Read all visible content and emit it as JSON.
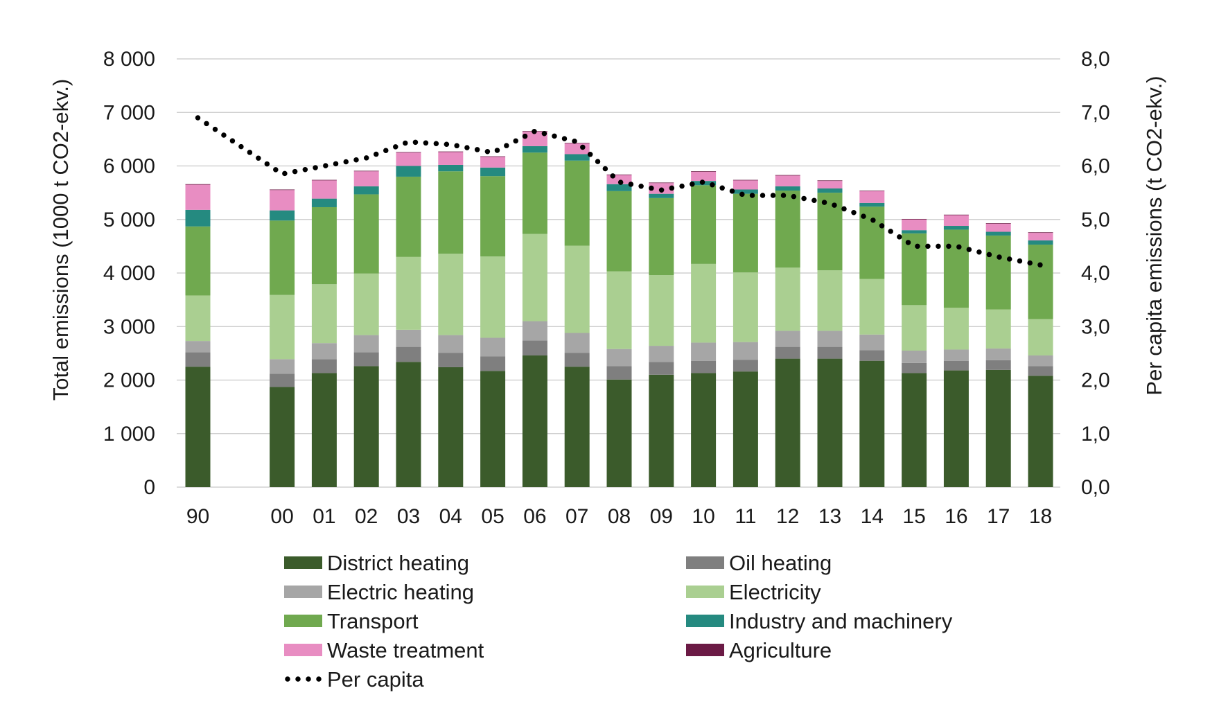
{
  "chart_data": {
    "type": "bar",
    "stacked": true,
    "grid": "horizontal",
    "legend_position": "bottom",
    "categories": [
      "90",
      "00",
      "01",
      "02",
      "03",
      "04",
      "05",
      "06",
      "07",
      "08",
      "09",
      "10",
      "11",
      "12",
      "13",
      "14",
      "15",
      "16",
      "17",
      "18"
    ],
    "category_slots": [
      0,
      2,
      3,
      4,
      5,
      6,
      7,
      8,
      9,
      10,
      11,
      12,
      13,
      14,
      15,
      16,
      17,
      18,
      19,
      20
    ],
    "y_left": {
      "label": "Total emissions (1000 t CO2-ekv.)",
      "range": [
        0,
        8000
      ],
      "ticks": [
        0,
        1000,
        2000,
        3000,
        4000,
        5000,
        6000,
        7000,
        8000
      ],
      "tick_labels": [
        "0",
        "1 000",
        "2 000",
        "3 000",
        "4 000",
        "5 000",
        "6 000",
        "7 000",
        "8 000"
      ]
    },
    "y_right": {
      "label": "Per capita emissions (t CO2-ekv.)",
      "range": [
        0,
        8
      ],
      "ticks": [
        0,
        1,
        2,
        3,
        4,
        5,
        6,
        7,
        8
      ],
      "tick_labels": [
        "0,0",
        "1,0",
        "2,0",
        "3,0",
        "4,0",
        "5,0",
        "6,0",
        "7,0",
        "8,0"
      ]
    },
    "series": [
      {
        "name": "District heating",
        "color": "#3b5b2b",
        "values": [
          2250,
          1870,
          2130,
          2260,
          2340,
          2240,
          2170,
          2460,
          2250,
          2010,
          2100,
          2130,
          2160,
          2400,
          2400,
          2360,
          2130,
          2180,
          2190,
          2080
        ]
      },
      {
        "name": "Oil heating",
        "color": "#7f7f7f",
        "values": [
          270,
          250,
          260,
          260,
          280,
          270,
          270,
          280,
          260,
          250,
          240,
          230,
          220,
          220,
          220,
          200,
          190,
          180,
          180,
          180
        ]
      },
      {
        "name": "Electric heating",
        "color": "#a6a6a6",
        "values": [
          210,
          270,
          300,
          320,
          320,
          330,
          350,
          360,
          370,
          320,
          300,
          340,
          330,
          300,
          300,
          290,
          230,
          210,
          220,
          200
        ]
      },
      {
        "name": "Electricity",
        "color": "#aacf91",
        "values": [
          850,
          1200,
          1100,
          1150,
          1360,
          1520,
          1520,
          1630,
          1630,
          1450,
          1320,
          1470,
          1300,
          1180,
          1130,
          1040,
          850,
          780,
          730,
          680
        ]
      },
      {
        "name": "Transport",
        "color": "#70a94f",
        "values": [
          1290,
          1390,
          1440,
          1480,
          1500,
          1540,
          1500,
          1520,
          1590,
          1500,
          1440,
          1470,
          1470,
          1440,
          1450,
          1350,
          1340,
          1460,
          1380,
          1390
        ]
      },
      {
        "name": "Industry and machinery",
        "color": "#258a80",
        "values": [
          310,
          190,
          160,
          150,
          200,
          120,
          160,
          120,
          120,
          130,
          80,
          80,
          80,
          80,
          80,
          70,
          60,
          70,
          70,
          80
        ]
      },
      {
        "name": "Waste treatment",
        "color": "#e88dc2",
        "values": [
          470,
          380,
          340,
          280,
          250,
          240,
          200,
          270,
          200,
          170,
          200,
          170,
          170,
          200,
          140,
          220,
          200,
          200,
          150,
          140
        ]
      },
      {
        "name": "Agriculture",
        "color": "#6b1a45",
        "values": [
          10,
          10,
          10,
          10,
          10,
          10,
          10,
          10,
          10,
          10,
          10,
          10,
          10,
          10,
          10,
          10,
          10,
          10,
          10,
          10
        ]
      }
    ],
    "line_series": {
      "name": "Per capita",
      "axis": "right",
      "color": "#000000",
      "style": "dotted",
      "points": [
        {
          "x": "90",
          "y": 6.9
        },
        {
          "x": "00",
          "y": 5.85
        },
        {
          "x": "01",
          "y": 6.0
        },
        {
          "x": "02",
          "y": 6.15
        },
        {
          "x": "03",
          "y": 6.45
        },
        {
          "x": "04",
          "y": 6.4
        },
        {
          "x": "05",
          "y": 6.25
        },
        {
          "x": "06",
          "y": 6.65
        },
        {
          "x": "07",
          "y": 6.45
        },
        {
          "x": "08",
          "y": 5.7
        },
        {
          "x": "09",
          "y": 5.55
        },
        {
          "x": "10",
          "y": 5.7
        },
        {
          "x": "11",
          "y": 5.45
        },
        {
          "x": "12",
          "y": 5.45
        },
        {
          "x": "13",
          "y": 5.3
        },
        {
          "x": "14",
          "y": 5.0
        },
        {
          "x": "15",
          "y": 4.5
        },
        {
          "x": "16",
          "y": 4.5
        },
        {
          "x": "17",
          "y": 4.3
        },
        {
          "x": "18",
          "y": 4.15
        }
      ]
    }
  }
}
